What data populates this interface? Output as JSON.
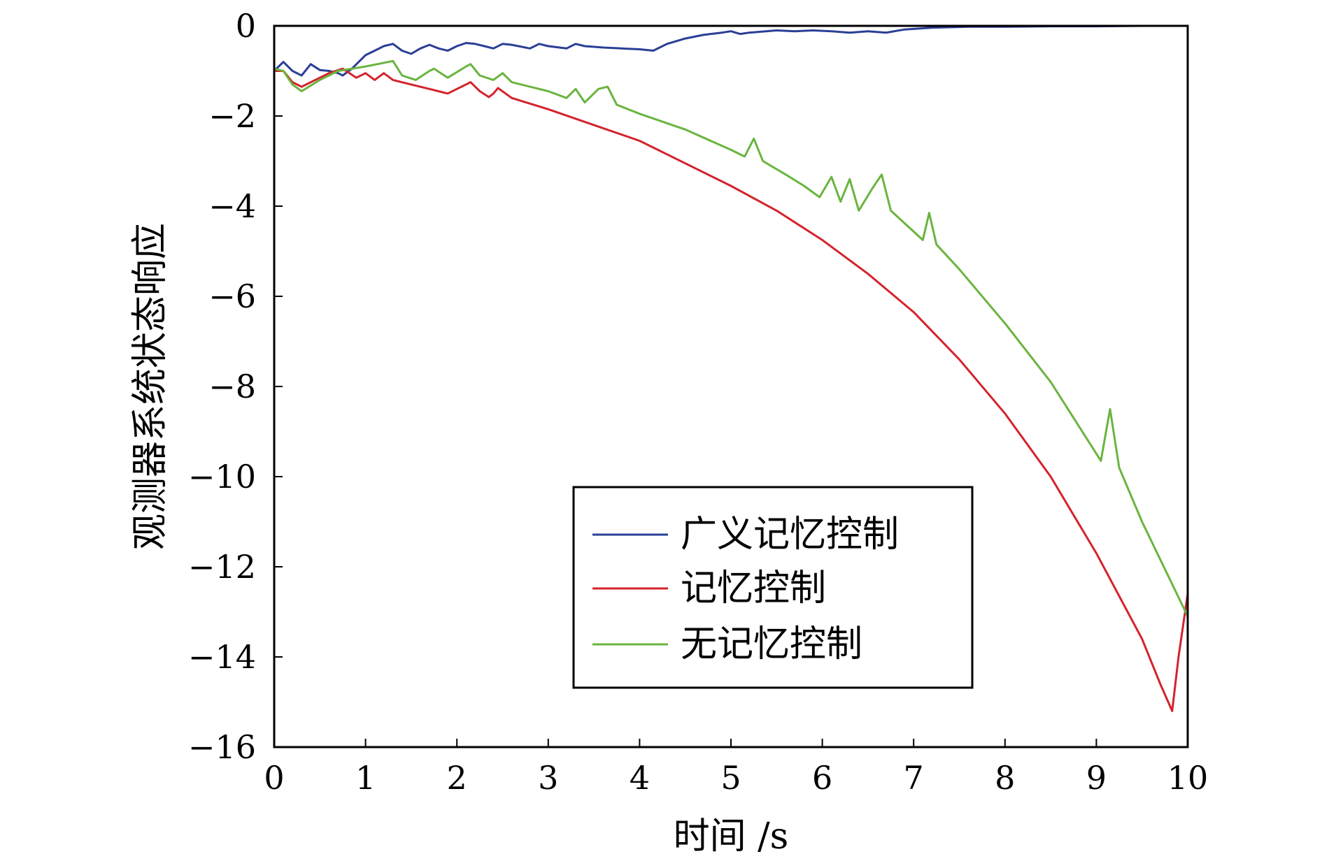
{
  "chart_data": {
    "type": "line",
    "title": "",
    "xlabel": "时间 /s",
    "ylabel": "观测器系统状态响应",
    "xlim": [
      0,
      10
    ],
    "ylim": [
      -16,
      0
    ],
    "xticks": [
      0,
      1,
      2,
      3,
      4,
      5,
      6,
      7,
      8,
      9,
      10
    ],
    "yticks": [
      0,
      -2,
      -4,
      -6,
      -8,
      -10,
      -12,
      -14,
      -16
    ],
    "grid": false,
    "legend_position": "lower-center",
    "series": [
      {
        "name": "广义记忆控制",
        "color": "#2a3f96",
        "points": [
          [
            0,
            -1.0
          ],
          [
            0.1,
            -0.8
          ],
          [
            0.2,
            -1.0
          ],
          [
            0.3,
            -1.1
          ],
          [
            0.4,
            -0.85
          ],
          [
            0.5,
            -0.98
          ],
          [
            0.6,
            -1.0
          ],
          [
            0.7,
            -1.05
          ],
          [
            0.75,
            -1.1
          ],
          [
            0.85,
            -0.95
          ],
          [
            1.0,
            -0.65
          ],
          [
            1.1,
            -0.55
          ],
          [
            1.2,
            -0.45
          ],
          [
            1.3,
            -0.4
          ],
          [
            1.4,
            -0.55
          ],
          [
            1.5,
            -0.62
          ],
          [
            1.6,
            -0.5
          ],
          [
            1.7,
            -0.42
          ],
          [
            1.8,
            -0.5
          ],
          [
            1.9,
            -0.55
          ],
          [
            2.0,
            -0.45
          ],
          [
            2.1,
            -0.38
          ],
          [
            2.2,
            -0.4
          ],
          [
            2.3,
            -0.45
          ],
          [
            2.4,
            -0.5
          ],
          [
            2.5,
            -0.4
          ],
          [
            2.6,
            -0.42
          ],
          [
            2.8,
            -0.5
          ],
          [
            2.9,
            -0.4
          ],
          [
            3.0,
            -0.45
          ],
          [
            3.2,
            -0.5
          ],
          [
            3.3,
            -0.4
          ],
          [
            3.4,
            -0.45
          ],
          [
            3.6,
            -0.48
          ],
          [
            3.8,
            -0.5
          ],
          [
            4.0,
            -0.52
          ],
          [
            4.15,
            -0.55
          ],
          [
            4.3,
            -0.4
          ],
          [
            4.5,
            -0.28
          ],
          [
            4.7,
            -0.2
          ],
          [
            4.9,
            -0.15
          ],
          [
            5.0,
            -0.12
          ],
          [
            5.1,
            -0.18
          ],
          [
            5.2,
            -0.15
          ],
          [
            5.5,
            -0.1
          ],
          [
            5.7,
            -0.12
          ],
          [
            5.9,
            -0.1
          ],
          [
            6.1,
            -0.12
          ],
          [
            6.3,
            -0.15
          ],
          [
            6.5,
            -0.12
          ],
          [
            6.7,
            -0.15
          ],
          [
            6.9,
            -0.08
          ],
          [
            7.2,
            -0.04
          ],
          [
            7.6,
            -0.02
          ],
          [
            8.0,
            -0.02
          ],
          [
            8.5,
            -0.01
          ],
          [
            9.0,
            -0.01
          ],
          [
            9.5,
            0
          ],
          [
            10.0,
            0
          ]
        ]
      },
      {
        "name": "记忆控制",
        "color": "#d4232c",
        "points": [
          [
            0,
            -1.0
          ],
          [
            0.1,
            -1.0
          ],
          [
            0.2,
            -1.25
          ],
          [
            0.3,
            -1.35
          ],
          [
            0.5,
            -1.15
          ],
          [
            0.6,
            -1.05
          ],
          [
            0.75,
            -0.95
          ],
          [
            0.9,
            -1.15
          ],
          [
            1.0,
            -1.05
          ],
          [
            1.1,
            -1.2
          ],
          [
            1.2,
            -1.05
          ],
          [
            1.3,
            -1.2
          ],
          [
            1.5,
            -1.3
          ],
          [
            1.7,
            -1.4
          ],
          [
            1.9,
            -1.5
          ],
          [
            2.0,
            -1.4
          ],
          [
            2.15,
            -1.25
          ],
          [
            2.25,
            -1.45
          ],
          [
            2.35,
            -1.58
          ],
          [
            2.4,
            -1.5
          ],
          [
            2.45,
            -1.38
          ],
          [
            2.6,
            -1.6
          ],
          [
            3.0,
            -1.85
          ],
          [
            3.5,
            -2.2
          ],
          [
            4.0,
            -2.55
          ],
          [
            4.5,
            -3.05
          ],
          [
            5.0,
            -3.55
          ],
          [
            5.5,
            -4.1
          ],
          [
            6.0,
            -4.75
          ],
          [
            6.5,
            -5.5
          ],
          [
            7.0,
            -6.35
          ],
          [
            7.5,
            -7.4
          ],
          [
            8.0,
            -8.6
          ],
          [
            8.5,
            -10.0
          ],
          [
            9.0,
            -11.7
          ],
          [
            9.5,
            -13.6
          ],
          [
            9.7,
            -14.6
          ],
          [
            9.83,
            -15.2
          ],
          [
            9.9,
            -14.0
          ],
          [
            10.0,
            -12.6
          ]
        ]
      },
      {
        "name": "无记忆控制",
        "color": "#6ab43f",
        "points": [
          [
            0,
            -0.95
          ],
          [
            0.1,
            -1.0
          ],
          [
            0.2,
            -1.3
          ],
          [
            0.3,
            -1.45
          ],
          [
            0.5,
            -1.2
          ],
          [
            0.7,
            -1.0
          ],
          [
            1.0,
            -0.9
          ],
          [
            1.3,
            -0.78
          ],
          [
            1.4,
            -1.1
          ],
          [
            1.55,
            -1.2
          ],
          [
            1.7,
            -1.0
          ],
          [
            1.75,
            -0.95
          ],
          [
            1.9,
            -1.15
          ],
          [
            2.1,
            -0.9
          ],
          [
            2.15,
            -0.85
          ],
          [
            2.25,
            -1.1
          ],
          [
            2.4,
            -1.2
          ],
          [
            2.5,
            -1.05
          ],
          [
            2.6,
            -1.25
          ],
          [
            3.0,
            -1.45
          ],
          [
            3.2,
            -1.6
          ],
          [
            3.3,
            -1.4
          ],
          [
            3.4,
            -1.7
          ],
          [
            3.55,
            -1.4
          ],
          [
            3.65,
            -1.35
          ],
          [
            3.75,
            -1.75
          ],
          [
            4.0,
            -1.95
          ],
          [
            4.5,
            -2.3
          ],
          [
            5.0,
            -2.75
          ],
          [
            5.15,
            -2.9
          ],
          [
            5.25,
            -2.5
          ],
          [
            5.35,
            -3.0
          ],
          [
            5.6,
            -3.3
          ],
          [
            5.8,
            -3.55
          ],
          [
            5.97,
            -3.8
          ],
          [
            6.1,
            -3.35
          ],
          [
            6.2,
            -3.9
          ],
          [
            6.3,
            -3.4
          ],
          [
            6.4,
            -4.1
          ],
          [
            6.55,
            -3.6
          ],
          [
            6.65,
            -3.3
          ],
          [
            6.75,
            -4.1
          ],
          [
            7.1,
            -4.75
          ],
          [
            7.17,
            -4.15
          ],
          [
            7.25,
            -4.85
          ],
          [
            7.5,
            -5.4
          ],
          [
            8.0,
            -6.6
          ],
          [
            8.5,
            -7.9
          ],
          [
            9.05,
            -9.65
          ],
          [
            9.15,
            -8.5
          ],
          [
            9.25,
            -9.8
          ],
          [
            9.5,
            -11.0
          ],
          [
            10.0,
            -13.1
          ]
        ]
      }
    ]
  }
}
